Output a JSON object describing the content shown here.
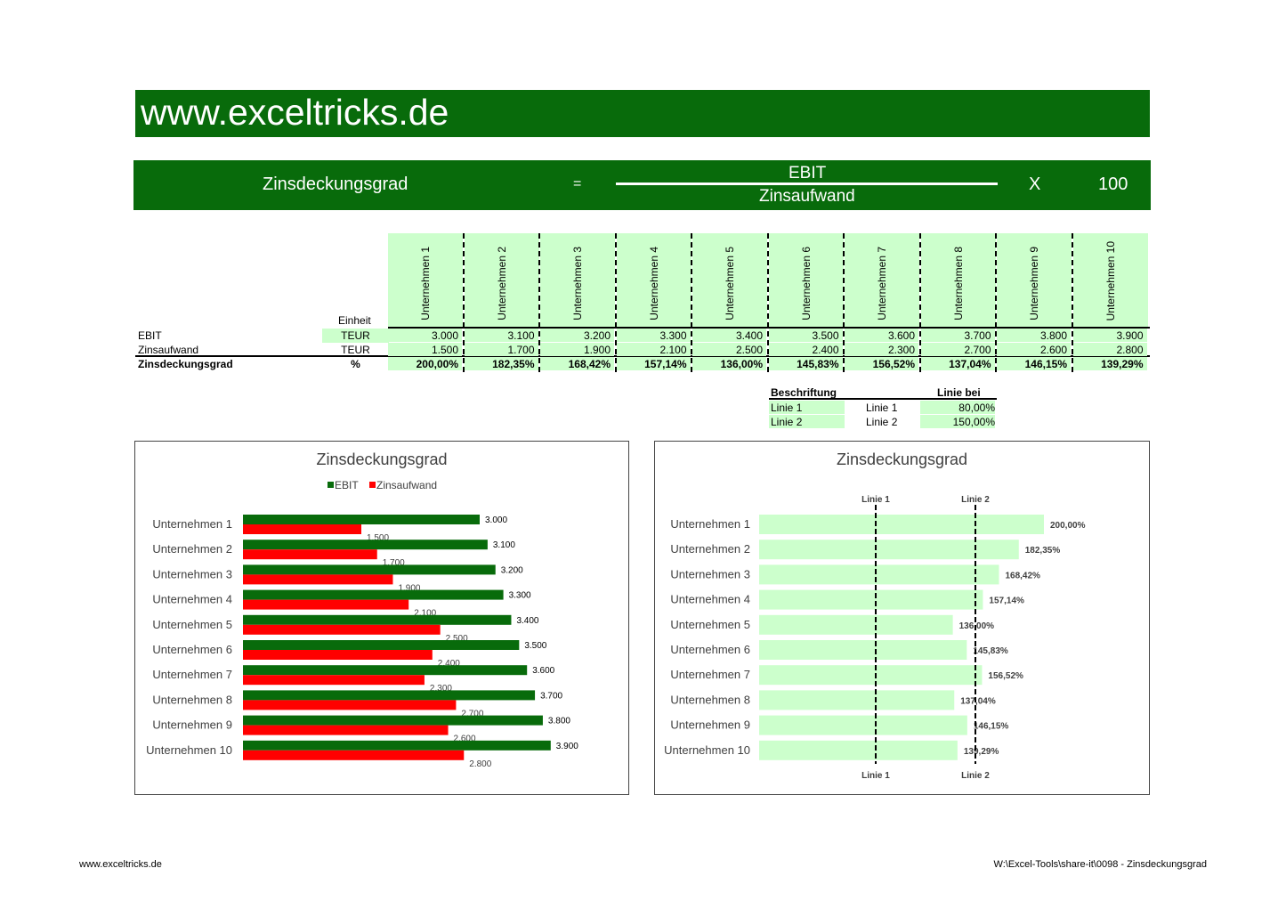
{
  "banner": {
    "title": "www.exceltricks.de"
  },
  "formula": {
    "lhs": "Zinsdeckungsgrad",
    "equals": "=",
    "numerator": "EBIT",
    "denominator": "Zinsaufwand",
    "times": "X",
    "factor": "100"
  },
  "table": {
    "unit_header": "Einheit",
    "companies": [
      "Unternehmen 1",
      "Unternehmen 2",
      "Unternehmen 3",
      "Unternehmen 4",
      "Unternehmen 5",
      "Unternehmen 6",
      "Unternehmen 7",
      "Unternehmen 8",
      "Unternehmen 9",
      "Unternehmen 10"
    ],
    "rows": [
      {
        "label": "EBIT",
        "unit": "TEUR",
        "values": [
          "3.000",
          "3.100",
          "3.200",
          "3.300",
          "3.400",
          "3.500",
          "3.600",
          "3.700",
          "3.800",
          "3.900"
        ]
      },
      {
        "label": "Zinsaufwand",
        "unit": "TEUR",
        "values": [
          "1.500",
          "1.700",
          "1.900",
          "2.100",
          "2.500",
          "2.400",
          "2.300",
          "2.700",
          "2.600",
          "2.800"
        ]
      },
      {
        "label": "Zinsdeckungsgrad",
        "unit": "%",
        "values": [
          "200,00%",
          "182,35%",
          "168,42%",
          "157,14%",
          "136,00%",
          "145,83%",
          "156,52%",
          "137,04%",
          "146,15%",
          "139,29%"
        ]
      }
    ]
  },
  "lines_table": {
    "header_label": "Beschriftung",
    "header_value": "Linie bei",
    "rows": [
      {
        "label": "Linie 1",
        "name": "Linie 1",
        "value": "80,00%"
      },
      {
        "label": "Linie 2",
        "name": "Linie 2",
        "value": "150,00%"
      }
    ]
  },
  "chart_data": [
    {
      "type": "bar",
      "orientation": "horizontal",
      "title": "Zinsdeckungsgrad",
      "legend": "top",
      "categories": [
        "Unternehmen 1",
        "Unternehmen 2",
        "Unternehmen 3",
        "Unternehmen 4",
        "Unternehmen 5",
        "Unternehmen 6",
        "Unternehmen 7",
        "Unternehmen 8",
        "Unternehmen 9",
        "Unternehmen 10"
      ],
      "series": [
        {
          "name": "EBIT",
          "color": "#086b0b",
          "values": [
            3000,
            3100,
            3200,
            3300,
            3400,
            3500,
            3600,
            3700,
            3800,
            3900
          ],
          "labels": [
            "3.000",
            "3.100",
            "3.200",
            "3.300",
            "3.400",
            "3.500",
            "3.600",
            "3.700",
            "3.800",
            "3.900"
          ]
        },
        {
          "name": "Zinsaufwand",
          "color": "#ff0000",
          "values": [
            1500,
            1700,
            1900,
            2100,
            2500,
            2400,
            2300,
            2700,
            2600,
            2800
          ],
          "labels": [
            "1.500",
            "1.700",
            "1.900",
            "2.100",
            "2.500",
            "2.400",
            "2.300",
            "2.700",
            "2.600",
            "2.800"
          ]
        }
      ],
      "xlim": [
        0,
        4500
      ],
      "grid": false
    },
    {
      "type": "bar",
      "orientation": "horizontal",
      "title": "Zinsdeckungsgrad",
      "categories": [
        "Unternehmen 1",
        "Unternehmen 2",
        "Unternehmen 3",
        "Unternehmen 4",
        "Unternehmen 5",
        "Unternehmen 6",
        "Unternehmen 7",
        "Unternehmen 8",
        "Unternehmen 9",
        "Unternehmen 10"
      ],
      "series": [
        {
          "color": "#ccffcc",
          "values": [
            200.0,
            182.35,
            168.42,
            157.14,
            136.0,
            145.83,
            156.52,
            137.04,
            146.15,
            139.29
          ],
          "labels": [
            "200,00%",
            "182,35%",
            "168,42%",
            "157,14%",
            "136,00%",
            "145,83%",
            "156,52%",
            "137,04%",
            "146,15%",
            "139,29%"
          ]
        }
      ],
      "reference_lines": [
        {
          "label": "Linie 1",
          "value": 80
        },
        {
          "label": "Linie 2",
          "value": 150
        }
      ],
      "xlim": [
        0,
        270
      ],
      "grid": false
    }
  ],
  "footer": {
    "left": "www.exceltricks.de",
    "right": "W:\\Excel-Tools\\share-it\\0098 - Zinsdeckungsgrad"
  }
}
